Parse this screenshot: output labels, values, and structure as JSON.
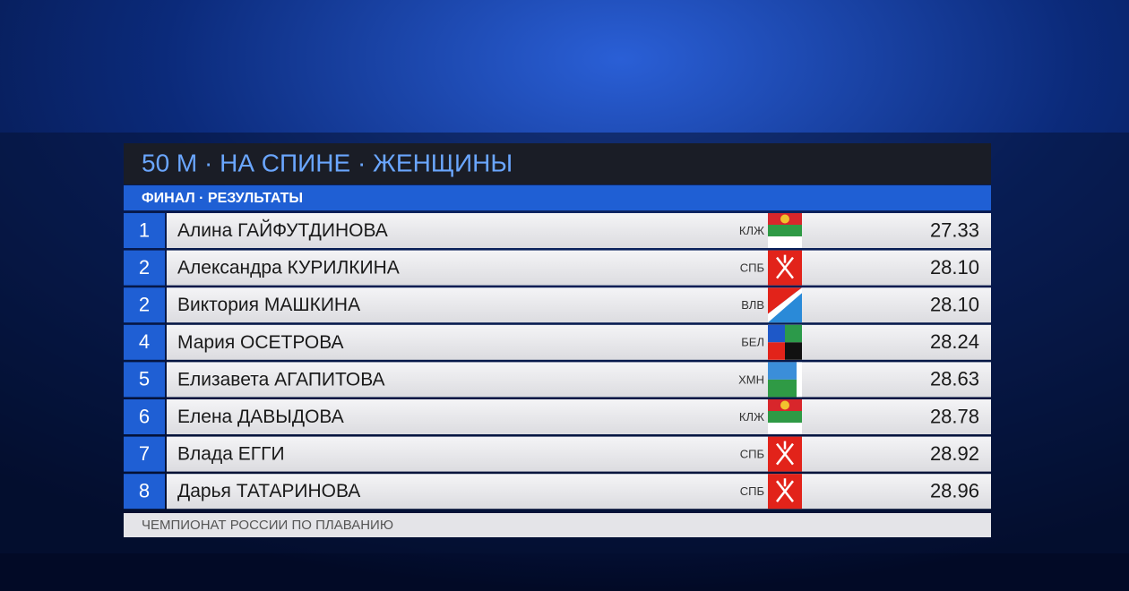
{
  "header": {
    "title": "50 М · НА СПИНЕ · ЖЕНЩИНЫ",
    "subtitle": "ФИНАЛ · РЕЗУЛЬТАТЫ"
  },
  "table": {
    "rows": [
      {
        "rank": "1",
        "name": "Алина ГАЙФУТДИНОВА",
        "region": "КЛЖ",
        "time": "27.33"
      },
      {
        "rank": "2",
        "name": "Александра КУРИЛКИНА",
        "region": "СПБ",
        "time": "28.10"
      },
      {
        "rank": "2",
        "name": "Виктория МАШКИНА",
        "region": "ВЛВ",
        "time": "28.10"
      },
      {
        "rank": "4",
        "name": "Мария ОСЕТРОВА",
        "region": "БЕЛ",
        "time": "28.24"
      },
      {
        "rank": "5",
        "name": "Елизавета АГАПИТОВА",
        "region": "ХМН",
        "time": "28.63"
      },
      {
        "rank": "6",
        "name": "Елена ДАВЫДОВА",
        "region": "КЛЖ",
        "time": "28.78"
      },
      {
        "rank": "7",
        "name": "Влада ЕГГИ",
        "region": "СПБ",
        "time": "28.92"
      },
      {
        "rank": "8",
        "name": "Дарья ТАТАРИНОВА",
        "region": "СПБ",
        "time": "28.96"
      }
    ]
  },
  "footer": {
    "text": "ЧЕМПИОНАТ РОССИИ ПО ПЛАВАНИЮ"
  }
}
